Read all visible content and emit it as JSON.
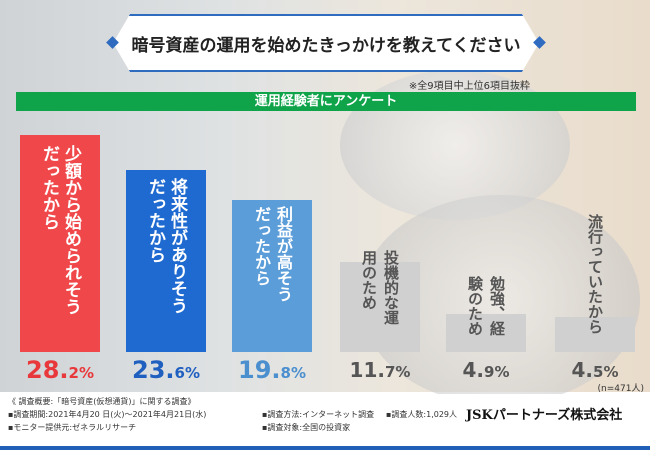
{
  "chart_data": {
    "type": "bar",
    "title": "暗号資産の運用を始めたきっかけを教えてください",
    "note": "※全9項目中上位6項目抜粋",
    "subtitle": "運用経験者にアンケート",
    "categories": [
      "少額から始められそうだったから",
      "将来性がありそうだったから",
      "利益が高そうだったから",
      "投機的な運用のため",
      "勉強、経験のため",
      "流行っていたから"
    ],
    "values": [
      28.2,
      23.6,
      19.8,
      11.7,
      4.9,
      4.5
    ],
    "value_labels": [
      [
        "28.",
        "2%"
      ],
      [
        "23.",
        "6%"
      ],
      [
        "19.",
        "8%"
      ],
      [
        "11.",
        "7%"
      ],
      [
        "4.",
        "9%"
      ],
      [
        "4.",
        "5%"
      ]
    ],
    "colors": [
      "#f0484a",
      "#1f6ad0",
      "#5b9dd8",
      "#d0d0d0",
      "#d0d0d0",
      "#d0d0d0"
    ],
    "pct_colors": [
      "#e8383b",
      "#1f5fc0",
      "#4b8fcf",
      "#555555",
      "#555555",
      "#555555"
    ],
    "sample": "(n=471人)",
    "ylim": [
      0,
      30
    ]
  },
  "footer": {
    "summary": "《 調査概要:「暗号資産(仮想通貨)」に関する調査》",
    "period": "▪調査期間:2021年4月20 日(火)〜2021年4月21日(水)",
    "method": "▪調査方法:インターネット調査",
    "count": "▪調査人数:1,029人",
    "provider": "▪モニター提供元:ゼネラルリサーチ",
    "target": "▪調査対象:全国の投資家",
    "logo": "JSKパートナーズ株式会社"
  }
}
